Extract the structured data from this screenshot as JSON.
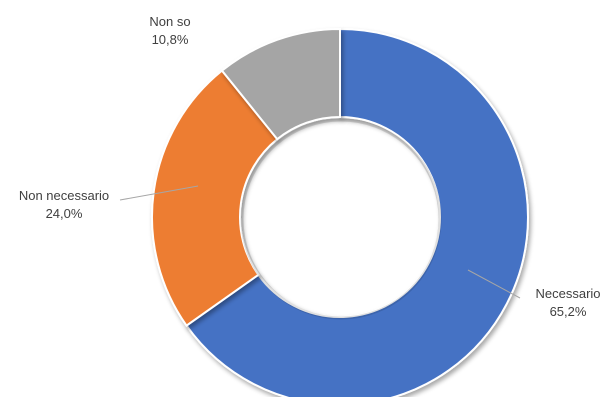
{
  "chart_data": {
    "type": "pie",
    "variant": "donut",
    "categories": [
      "Necessario",
      "Non necessario",
      "Non so"
    ],
    "values": [
      65.2,
      24.0,
      10.8
    ],
    "value_labels": [
      "65,2%",
      "24,0%",
      "10,8%"
    ],
    "colors": [
      "#4472C4",
      "#ED7D31",
      "#A5A5A5"
    ],
    "title": "",
    "legend": "none"
  }
}
